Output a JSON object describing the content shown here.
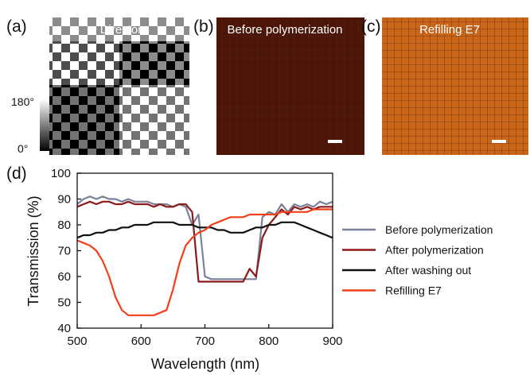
{
  "panels": {
    "a": {
      "label": "(a)",
      "title": "Director",
      "colorbar_max": "180°",
      "colorbar_min": "0°"
    },
    "b": {
      "label": "(b)",
      "title": "Before polymerization"
    },
    "c": {
      "label": "(c)",
      "title": "Refilling E7"
    },
    "d": {
      "label": "(d)"
    }
  },
  "chart_data": {
    "type": "line",
    "x_label": "Wavelength (nm)",
    "y_label": "Transmission (%)",
    "xlim": [
      500,
      900
    ],
    "xticks": [
      500,
      600,
      700,
      800,
      900
    ],
    "ylim": [
      40,
      100
    ],
    "yticks": [
      40,
      50,
      60,
      70,
      80,
      90,
      100
    ],
    "x": [
      500,
      510,
      520,
      530,
      540,
      550,
      560,
      570,
      580,
      590,
      600,
      610,
      620,
      630,
      640,
      650,
      660,
      670,
      680,
      690,
      700,
      710,
      720,
      730,
      740,
      750,
      760,
      770,
      780,
      790,
      800,
      810,
      820,
      830,
      840,
      850,
      860,
      870,
      880,
      890,
      900
    ],
    "series": [
      {
        "name": "Before polymerization",
        "color": "#7a8299",
        "values": [
          88,
          90,
          91,
          90,
          91,
          90,
          90,
          89,
          90,
          89,
          89,
          89,
          88,
          88,
          88,
          87,
          88,
          87,
          80,
          84,
          60,
          59,
          59,
          59,
          59,
          59,
          59,
          59,
          59,
          83,
          85,
          84,
          88,
          85,
          88,
          87,
          88,
          87,
          89,
          88,
          89
        ]
      },
      {
        "name": "After polymerization",
        "color": "#8b1a1a",
        "values": [
          87,
          88,
          89,
          88,
          89,
          89,
          88,
          88,
          89,
          88,
          88,
          88,
          87,
          88,
          87,
          87,
          88,
          88,
          85,
          58,
          58,
          58,
          58,
          58,
          58,
          58,
          58,
          63,
          60,
          75,
          80,
          83,
          86,
          84,
          87,
          86,
          87,
          86,
          87,
          87,
          87
        ]
      },
      {
        "name": "After washing out",
        "color": "#111111",
        "values": [
          75,
          76,
          76,
          77,
          77,
          78,
          78,
          79,
          79,
          80,
          80,
          80,
          81,
          81,
          81,
          81,
          80,
          80,
          80,
          79,
          79,
          79,
          78,
          78,
          77,
          77,
          77,
          78,
          79,
          79,
          80,
          80,
          81,
          81,
          81,
          80,
          79,
          78,
          77,
          76,
          75
        ]
      },
      {
        "name": "Refilling E7",
        "color": "#f0401a",
        "values": [
          74,
          73,
          72,
          70,
          66,
          60,
          52,
          47,
          45,
          45,
          45,
          45,
          45,
          46,
          47,
          55,
          65,
          72,
          75,
          77,
          78,
          80,
          81,
          82,
          83,
          83,
          83,
          84,
          84,
          84,
          84,
          84,
          85,
          85,
          85,
          85,
          85,
          86,
          86,
          86,
          86
        ]
      }
    ]
  }
}
